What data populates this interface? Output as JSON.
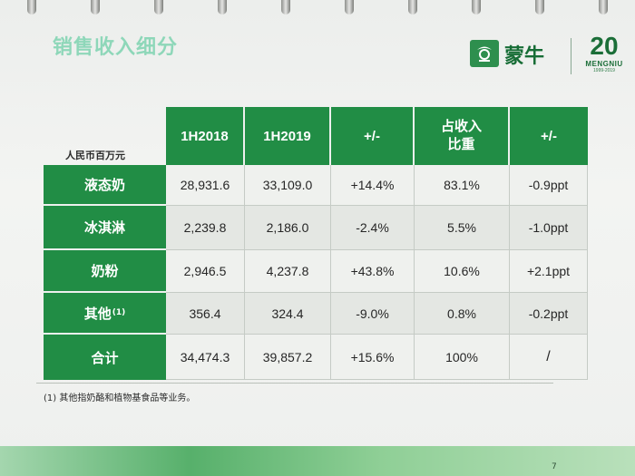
{
  "title": "销售收入细分",
  "logo": {
    "brand_name": "蒙牛",
    "brand_name_en": "MENGNIU",
    "anniversary_mark": "20",
    "anniversary_years": "1999-2019"
  },
  "unit_label": "人民币百万元",
  "table": {
    "headers": [
      "1H2018",
      "1H2019",
      "+/-",
      "占收入比重",
      "+/-"
    ],
    "rows": [
      {
        "label": "液态奶",
        "values": [
          "28,931.6",
          "33,109.0",
          "+14.4%",
          "83.1%",
          "-0.9ppt"
        ]
      },
      {
        "label": "冰淇淋",
        "values": [
          "2,239.8",
          "2,186.0",
          "-2.4%",
          "5.5%",
          "-1.0ppt"
        ]
      },
      {
        "label": "奶粉",
        "values": [
          "2,946.5",
          "4,237.8",
          "+43.8%",
          "10.6%",
          "+2.1ppt"
        ]
      },
      {
        "label": "其他",
        "label_sup": "(1)",
        "values": [
          "356.4",
          "324.4",
          "-9.0%",
          "0.8%",
          "-0.2ppt"
        ]
      },
      {
        "label": "合计",
        "values": [
          "34,474.3",
          "39,857.2",
          "+15.6%",
          "100%",
          "/"
        ]
      }
    ]
  },
  "footnote": "(1) 其他指奶酪和植物基食品等业务。",
  "page_number": "7",
  "colors": {
    "header_green": "#218d45",
    "title_green": "#8ed7b9",
    "brand_green": "#176d36"
  }
}
